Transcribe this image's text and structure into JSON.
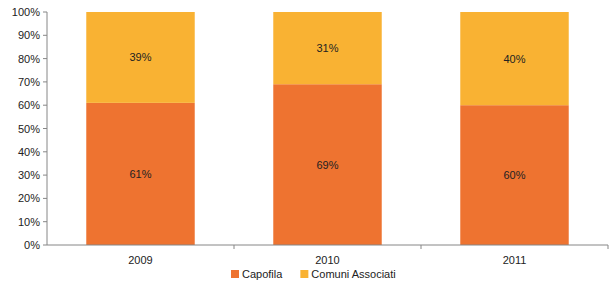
{
  "chart_data": {
    "type": "bar",
    "stacked": true,
    "data_labels": true,
    "grid": false,
    "legend": "bottom",
    "categories": [
      "2009",
      "2010",
      "2011"
    ],
    "series": [
      {
        "name": "Capofila",
        "color": "#ee7330",
        "values": [
          61,
          69,
          60
        ],
        "value_labels": [
          "61%",
          "69%",
          "60%"
        ]
      },
      {
        "name": "Comuni Associati",
        "color": "#f9b233",
        "values": [
          39,
          31,
          40
        ],
        "value_labels": [
          "39%",
          "31%",
          "40%"
        ]
      }
    ],
    "ylim": [
      0,
      100
    ],
    "yticks": [
      {
        "value": 0,
        "label": "0%"
      },
      {
        "value": 10,
        "label": "10%"
      },
      {
        "value": 20,
        "label": "20%"
      },
      {
        "value": 30,
        "label": "30%"
      },
      {
        "value": 40,
        "label": "40%"
      },
      {
        "value": 50,
        "label": "50%"
      },
      {
        "value": 60,
        "label": "60%"
      },
      {
        "value": 70,
        "label": "70%"
      },
      {
        "value": 80,
        "label": "80%"
      },
      {
        "value": 90,
        "label": "90%"
      },
      {
        "value": 100,
        "label": "100%"
      }
    ]
  }
}
